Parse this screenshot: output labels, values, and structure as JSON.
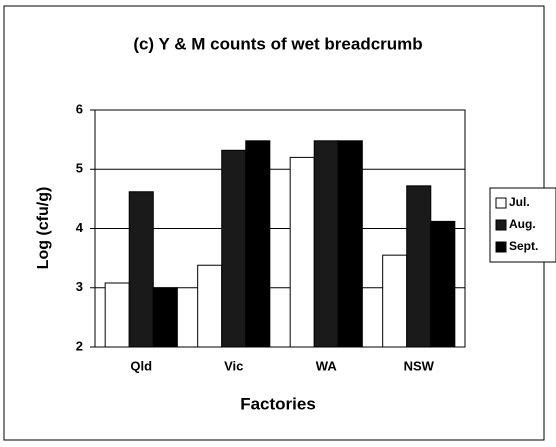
{
  "chart_data": {
    "type": "bar",
    "title": "(c) Y & M counts of wet breadcrumb",
    "x_label": "Factories",
    "y_label": "Log (cfu/g)",
    "categories": [
      "Qld",
      "Vic",
      "WA",
      "NSW"
    ],
    "series": [
      {
        "name": "Jul.",
        "color": "#ffffff",
        "values": [
          3.08,
          3.38,
          5.2,
          3.55
        ]
      },
      {
        "name": "Aug.",
        "color": "#1a1a1a",
        "values": [
          4.62,
          5.32,
          5.48,
          4.72
        ]
      },
      {
        "name": "Sept.",
        "color": "#000000",
        "values": [
          3.0,
          5.48,
          5.48,
          4.12
        ]
      }
    ],
    "ylim": [
      2,
      6
    ],
    "yticks": [
      2,
      3,
      4,
      5,
      6
    ],
    "grid": true,
    "legend": "right"
  }
}
